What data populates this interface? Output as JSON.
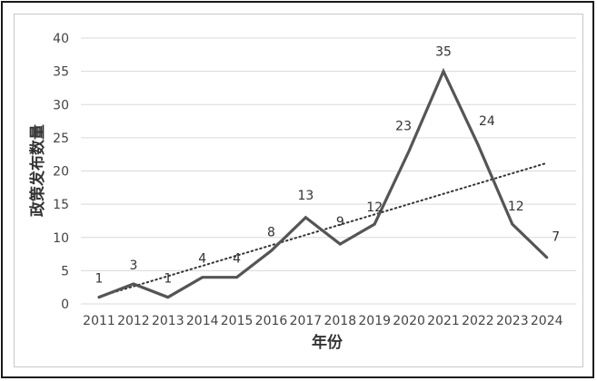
{
  "chart_data": {
    "type": "line",
    "title": "",
    "xlabel": "年份",
    "ylabel": "政策发布数量",
    "categories": [
      "2011",
      "2012",
      "2013",
      "2014",
      "2015",
      "2016",
      "2017",
      "2018",
      "2019",
      "2020",
      "2021",
      "2022",
      "2023",
      "2024"
    ],
    "series": [
      {
        "values": [
          1,
          3,
          1,
          4,
          4,
          8,
          13,
          9,
          12,
          23,
          35,
          24,
          12,
          7
        ]
      }
    ],
    "trendline": {
      "type": "linear",
      "style": "dotted"
    },
    "ylim": [
      0,
      40
    ],
    "yticks": [
      0,
      5,
      10,
      15,
      20,
      25,
      30,
      35,
      40
    ],
    "grid": true,
    "line_color": "#555555",
    "grid_color": "#d9d9d9"
  }
}
